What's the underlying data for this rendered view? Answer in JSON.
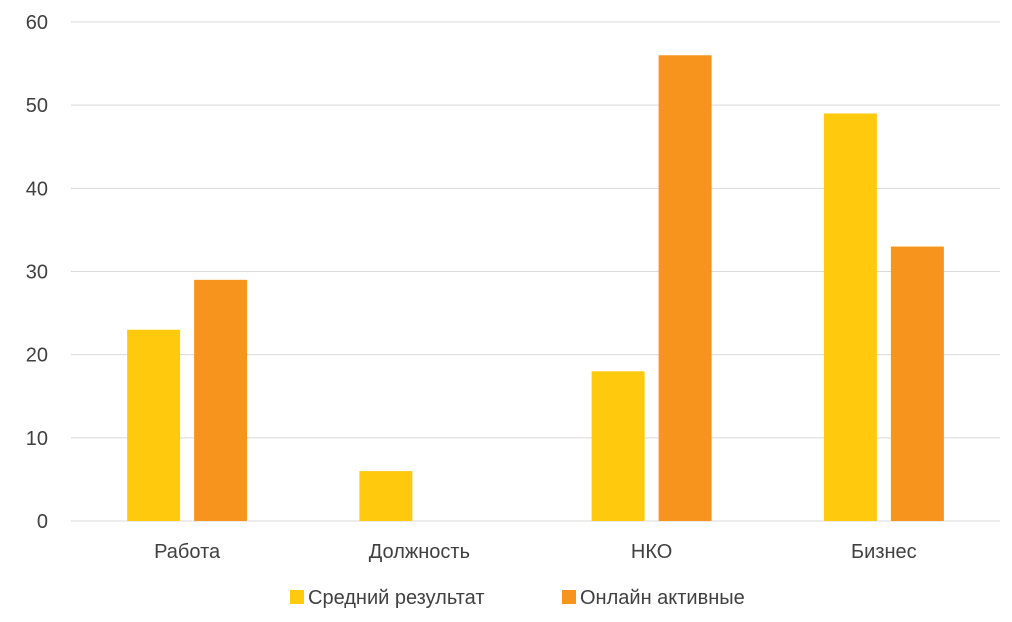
{
  "chart_data": {
    "type": "bar",
    "title": "",
    "xlabel": "",
    "ylabel": "",
    "categories": [
      "Работа",
      "Должность",
      "НКО",
      "Бизнес"
    ],
    "series": [
      {
        "name": "Средний результат",
        "values": [
          23,
          6,
          18,
          49
        ],
        "color": "#FFC90E"
      },
      {
        "name": "Онлайн активные",
        "values": [
          29,
          0,
          56,
          33
        ],
        "color": "#F7941D"
      }
    ],
    "ylim": [
      0,
      60
    ],
    "yticks": [
      0,
      10,
      20,
      30,
      40,
      50,
      60
    ],
    "grid": true,
    "gridline_color": "#D9D9D9",
    "legend_position": "bottom"
  }
}
